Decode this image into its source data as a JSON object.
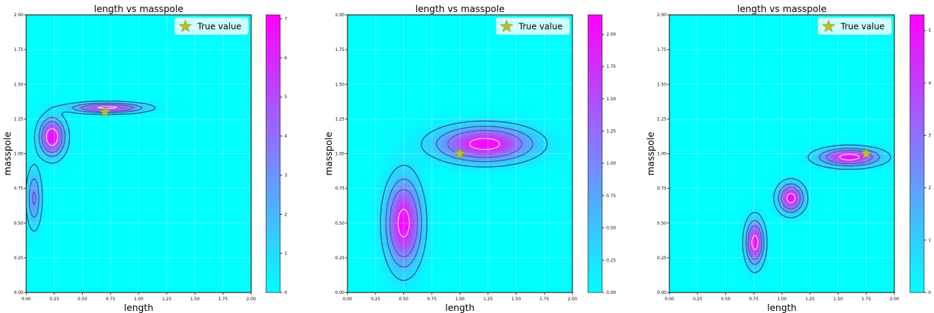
{
  "chart_data": [
    {
      "type": "heatmap",
      "title": "length vs masspole",
      "xlabel": "length",
      "ylabel": "masspole",
      "xlim": [
        0,
        2
      ],
      "ylim": [
        0,
        2
      ],
      "xticks": [
        "0.00",
        "0.25",
        "0.50",
        "0.75",
        "1.00",
        "1.25",
        "1.50",
        "1.75",
        "2.00"
      ],
      "yticks": [
        "0.00",
        "0.25",
        "0.50",
        "0.75",
        "1.00",
        "1.25",
        "1.50",
        "1.75",
        "2.00"
      ],
      "grid": true,
      "legend": {
        "label": "True value",
        "position": "upper right"
      },
      "true_value": {
        "x": 0.7,
        "y": 1.3
      },
      "colorbar": {
        "min": 0,
        "max": 7.1,
        "ticks": [
          "0",
          "1",
          "2",
          "3",
          "4",
          "5",
          "6",
          "7"
        ]
      },
      "components": [
        {
          "mx": 0.23,
          "my": 1.12,
          "sx": 0.07,
          "sy": 0.085,
          "peak": 7.0
        },
        {
          "mx": 0.72,
          "my": 1.33,
          "sx": 0.2,
          "sy": 0.022,
          "peak": 6.0
        },
        {
          "mx": 0.07,
          "my": 0.68,
          "sx": 0.04,
          "sy": 0.13,
          "peak": 3.2
        }
      ],
      "contour_levels": [
        0.6,
        1.8,
        3.0,
        4.2,
        5.4
      ]
    },
    {
      "type": "heatmap",
      "title": "length vs masspole",
      "xlabel": "length",
      "ylabel": "masspole",
      "xlim": [
        0,
        2
      ],
      "ylim": [
        0,
        2
      ],
      "xticks": [
        "0.00",
        "0.25",
        "0.50",
        "0.75",
        "1.00",
        "1.25",
        "1.50",
        "1.75",
        "2.00"
      ],
      "yticks": [
        "0.00",
        "0.25",
        "0.50",
        "0.75",
        "1.00",
        "1.25",
        "1.50",
        "1.75",
        "2.00"
      ],
      "grid": true,
      "legend": {
        "label": "True value",
        "position": "upper right"
      },
      "true_value": {
        "x": 1.0,
        "y": 1.0
      },
      "colorbar": {
        "min": 0,
        "max": 2.15,
        "ticks": [
          "0.00",
          "0.25",
          "0.50",
          "0.75",
          "1.00",
          "1.25",
          "1.50",
          "1.75",
          "2.00"
        ]
      },
      "components": [
        {
          "mx": 1.22,
          "my": 1.07,
          "sx": 0.27,
          "sy": 0.08,
          "peak": 2.1
        },
        {
          "mx": 0.5,
          "my": 0.5,
          "sx": 0.1,
          "sy": 0.2,
          "peak": 2.1
        }
      ],
      "contour_levels": [
        0.25,
        0.6,
        1.0,
        1.4,
        1.85
      ]
    },
    {
      "type": "heatmap",
      "title": "length vs masspole",
      "xlabel": "length",
      "ylabel": "masspole",
      "xlim": [
        0,
        2
      ],
      "ylim": [
        0,
        2
      ],
      "xticks": [
        "0.00",
        "0.25",
        "0.50",
        "0.75",
        "1.00",
        "1.25",
        "1.50",
        "1.75",
        "2.00"
      ],
      "yticks": [
        "0.00",
        "0.25",
        "0.50",
        "0.75",
        "1.00",
        "1.25",
        "1.50",
        "1.75",
        "2.00"
      ],
      "grid": true,
      "legend": {
        "label": "True value",
        "position": "upper right"
      },
      "true_value": {
        "x": 1.75,
        "y": 1.0
      },
      "colorbar": {
        "min": 0,
        "max": 5.3,
        "ticks": [
          "0",
          "1",
          "2",
          "3",
          "4",
          "5"
        ]
      },
      "components": [
        {
          "mx": 1.6,
          "my": 0.975,
          "sx": 0.17,
          "sy": 0.04,
          "peak": 5.2
        },
        {
          "mx": 1.08,
          "my": 0.68,
          "sx": 0.07,
          "sy": 0.065,
          "peak": 5.2
        },
        {
          "mx": 0.76,
          "my": 0.36,
          "sx": 0.05,
          "sy": 0.1,
          "peak": 5.2
        }
      ],
      "contour_levels": [
        0.5,
        1.5,
        2.5,
        3.5,
        4.5
      ]
    }
  ]
}
